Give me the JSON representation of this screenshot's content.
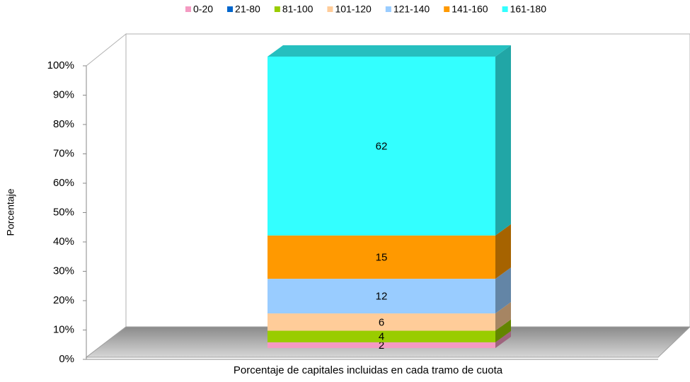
{
  "chart_data": {
    "type": "stacked_bar_3d_percent",
    "x_label": "Porcentaje de capitales incluidas en cada tramo de cuota",
    "y_label": "Porcentaje",
    "series": [
      {
        "name": "0-20",
        "color": "#f49ac2",
        "values": [
          2
        ]
      },
      {
        "name": "21-80",
        "color": "#0066cc",
        "values": [
          0
        ]
      },
      {
        "name": "81-100",
        "color": "#99cc00",
        "values": [
          4
        ]
      },
      {
        "name": "101-120",
        "color": "#ffcc99",
        "values": [
          6
        ]
      },
      {
        "name": "121-140",
        "color": "#99ccff",
        "values": [
          12
        ]
      },
      {
        "name": "141-160",
        "color": "#ff9900",
        "values": [
          15
        ]
      },
      {
        "name": "161-180",
        "color": "#33ffff",
        "values": [
          62
        ]
      }
    ],
    "ylim": [
      0,
      100
    ],
    "yticks": [
      {
        "value": 0,
        "label": "0%"
      },
      {
        "value": 10,
        "label": "10%"
      },
      {
        "value": 20,
        "label": "20%"
      },
      {
        "value": 30,
        "label": "30%"
      },
      {
        "value": 40,
        "label": "40%"
      },
      {
        "value": 50,
        "label": "50%"
      },
      {
        "value": 60,
        "label": "60%"
      },
      {
        "value": 70,
        "label": "70%"
      },
      {
        "value": 80,
        "label": "80%"
      },
      {
        "value": 90,
        "label": "90%"
      },
      {
        "value": 100,
        "label": "100%"
      }
    ],
    "legend": "top"
  }
}
